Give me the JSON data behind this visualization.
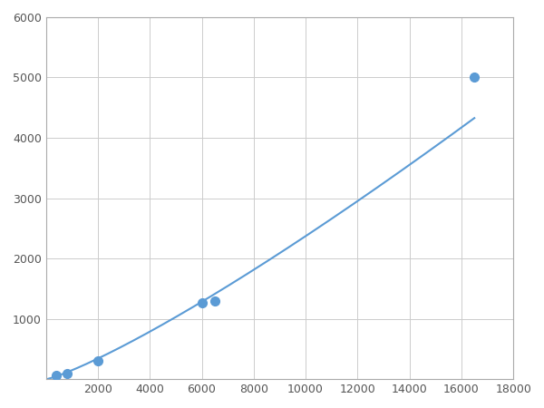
{
  "x_data": [
    400,
    800,
    2000,
    6000,
    6500,
    16500
  ],
  "y_data": [
    60,
    100,
    310,
    1270,
    1290,
    5000
  ],
  "line_color": "#5b9bd5",
  "marker_color": "#5b9bd5",
  "marker_size": 7,
  "line_width": 1.5,
  "xlim": [
    0,
    18000
  ],
  "ylim": [
    0,
    6000
  ],
  "xticks": [
    0,
    2000,
    4000,
    6000,
    8000,
    10000,
    12000,
    14000,
    16000,
    18000
  ],
  "yticks": [
    0,
    1000,
    2000,
    3000,
    4000,
    5000,
    6000
  ],
  "grid": true,
  "background_color": "#ffffff",
  "grid_color": "#cccccc",
  "spine_color": "#aaaaaa"
}
